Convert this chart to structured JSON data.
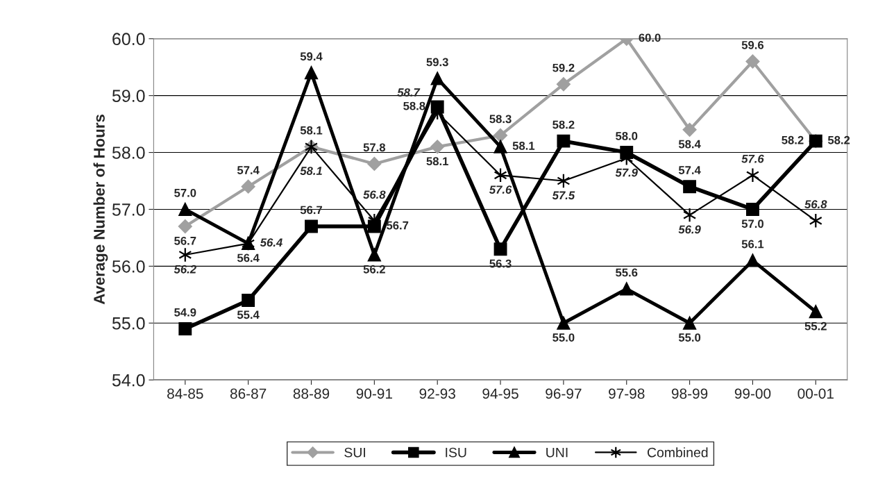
{
  "chart_data": {
    "type": "line",
    "ylabel": "Average Number of Hours",
    "categories": [
      "84-85",
      "86-87",
      "88-89",
      "90-91",
      "92-93",
      "94-95",
      "96-97",
      "97-98",
      "98-99",
      "99-00",
      "00-01"
    ],
    "ylim": [
      54.0,
      60.0
    ],
    "yticks": [
      {
        "value": 54,
        "label": "54.0"
      },
      {
        "value": 55,
        "label": "55.0"
      },
      {
        "value": 56,
        "label": "56.0"
      },
      {
        "value": 57,
        "label": "57.0"
      },
      {
        "value": 58,
        "label": "58.0"
      },
      {
        "value": 59,
        "label": "59.0"
      },
      {
        "value": 60,
        "label": "60.0"
      }
    ],
    "grid": "y",
    "legend": "bottom",
    "series": [
      {
        "name": "SUI",
        "color": "#a0a0a0",
        "marker": "diamond",
        "values": [
          56.7,
          57.4,
          58.1,
          57.8,
          58.1,
          58.3,
          59.2,
          60.0,
          58.4,
          59.6,
          58.2
        ],
        "value_labels": [
          "56.7",
          "57.4",
          "58.1",
          "57.8",
          "58.1",
          "58.3",
          "59.2",
          "60.0",
          "58.4",
          "59.6",
          "58.2"
        ]
      },
      {
        "name": "ISU",
        "color": "#000000",
        "marker": "square",
        "values": [
          54.9,
          55.4,
          56.7,
          56.7,
          58.8,
          56.3,
          58.2,
          58.0,
          57.4,
          57.0,
          58.2
        ],
        "value_labels": [
          "54.9",
          "55.4",
          "56.7",
          "56.7",
          "58.8",
          "56.3",
          "58.2",
          "58.0",
          "57.4",
          "57.0",
          "58.2"
        ]
      },
      {
        "name": "UNI",
        "color": "#000000",
        "marker": "triangle",
        "values": [
          57.0,
          56.4,
          59.4,
          56.2,
          59.3,
          58.1,
          55.0,
          55.6,
          55.0,
          56.1,
          55.2
        ],
        "value_labels": [
          "57.0",
          "56.4",
          "59.4",
          "56.2",
          "59.3",
          "58.1",
          "55.0",
          "55.6",
          "55.0",
          "56.1",
          "55.2"
        ]
      },
      {
        "name": "Combined",
        "color": "#000000",
        "marker": "cross",
        "values": [
          56.2,
          56.4,
          58.1,
          56.8,
          58.7,
          57.6,
          57.5,
          57.9,
          56.9,
          57.6,
          56.8
        ],
        "value_labels": [
          "56.2",
          "56.4",
          "58.1",
          "56.8",
          "58.7",
          "57.6",
          "57.5",
          "57.9",
          "56.9",
          "57.6",
          "56.8"
        ]
      }
    ]
  }
}
